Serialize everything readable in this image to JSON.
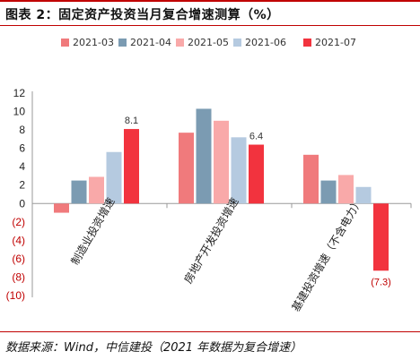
{
  "title": "图表 2：固定资产投资当月复合增速测算（%）",
  "source": "数据来源：Wind，中信建投（2021 年数据为复合增速）",
  "chart_data": {
    "type": "bar",
    "categories": [
      "制造业投资增速",
      "房地产开发投资增速",
      "基建投资增速（不含电力）"
    ],
    "series": [
      {
        "name": "2021-03",
        "color": "#f07a7c",
        "values": [
          -1.0,
          7.7,
          5.3
        ]
      },
      {
        "name": "2021-04",
        "color": "#7b9bb2",
        "values": [
          2.5,
          10.3,
          2.5
        ]
      },
      {
        "name": "2021-05",
        "color": "#f9a9a9",
        "values": [
          2.9,
          9.0,
          3.1
        ]
      },
      {
        "name": "2021-06",
        "color": "#b5cae0",
        "values": [
          5.6,
          7.2,
          1.8
        ]
      },
      {
        "name": "2021-07",
        "color": "#f2333e",
        "values": [
          8.1,
          6.4,
          -7.3
        ]
      }
    ],
    "data_labels": [
      "8.1",
      "6.4",
      "(7.3)"
    ],
    "yticks": [
      {
        "value": 12,
        "label": "12"
      },
      {
        "value": 10,
        "label": "10"
      },
      {
        "value": 8,
        "label": "8"
      },
      {
        "value": 6,
        "label": "6"
      },
      {
        "value": 4,
        "label": "4"
      },
      {
        "value": 2,
        "label": "2"
      },
      {
        "value": 0,
        "label": "0"
      },
      {
        "value": -2,
        "label": "(2)"
      },
      {
        "value": -4,
        "label": "(4)"
      },
      {
        "value": -6,
        "label": "(6)"
      },
      {
        "value": -8,
        "label": "(8)"
      },
      {
        "value": -10,
        "label": "(10)"
      }
    ],
    "ylim": [
      -10,
      12
    ],
    "negative_color": "#c00000",
    "legend_position": "top",
    "grid": false
  }
}
